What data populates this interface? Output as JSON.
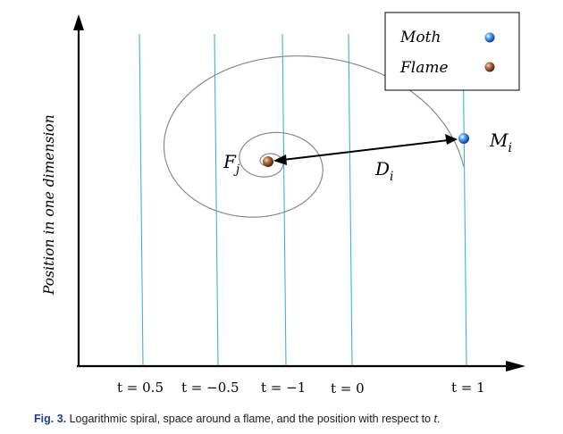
{
  "axis": {
    "ylabel": "Position in one dimension"
  },
  "legend": {
    "items": [
      {
        "label": "Moth",
        "color": "#2a6fdb",
        "marker": "blue-sphere"
      },
      {
        "label": "Flame",
        "color": "#8b4a2b",
        "marker": "brown-sphere"
      }
    ]
  },
  "labels": {
    "flame_base": "F",
    "flame_sub": "j",
    "moth_base": "M",
    "moth_sub": "i",
    "distance_base": "D",
    "distance_sub": "i"
  },
  "ticks": [
    {
      "t": "0.5",
      "text": "t = 0.5"
    },
    {
      "t": "-0.5",
      "text": "t = −0.5"
    },
    {
      "t": "-1",
      "text": "t = −1"
    },
    {
      "t": "0",
      "text": "t = 0"
    },
    {
      "t": "1",
      "text": "t = 1"
    }
  ],
  "caption": {
    "label": "Fig. 3.",
    "text_before": "Logarithmic spiral, space around a flame, and the position with respect to ",
    "var": "t",
    "text_after": "."
  },
  "colors": {
    "line": "#3cb4dc",
    "spiral": "#8a8a8a",
    "axis": "#000000"
  }
}
